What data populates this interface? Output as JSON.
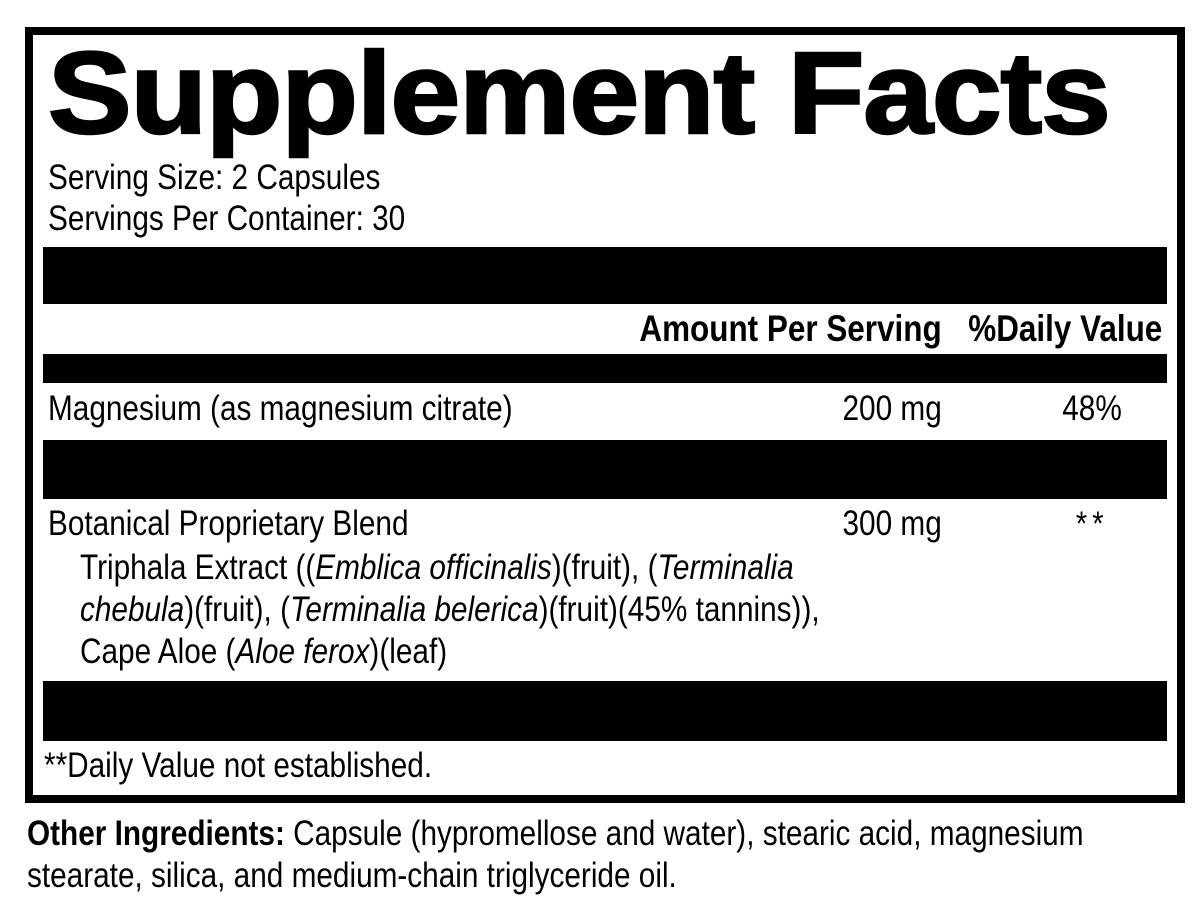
{
  "label": {
    "title": "Supplement Facts",
    "serving_size": "Serving Size: 2 Capsules",
    "servings_per_container": "Servings Per Container: 30",
    "columns": {
      "amount": "Amount Per Serving",
      "daily_value": "%Daily Value"
    },
    "rows": [
      {
        "name": "Magnesium (as magnesium citrate)",
        "amount": "200 mg",
        "dv": "48%"
      }
    ],
    "blend": {
      "name": "Botanical Proprietary Blend",
      "amount": "300 mg",
      "dv": "**",
      "lines": [
        [
          {
            "text": "Triphala Extract (("
          },
          {
            "text": "Emblica officinalis",
            "italic": true
          },
          {
            "text": ")(fruit), ("
          },
          {
            "text": "Terminalia",
            "italic": true
          }
        ],
        [
          {
            "text": "chebula",
            "italic": true
          },
          {
            "text": ")(fruit), ("
          },
          {
            "text": "Terminalia belerica",
            "italic": true
          },
          {
            "text": ")(fruit)(45% tannins)),"
          }
        ],
        [
          {
            "text": "Cape Aloe ("
          },
          {
            "text": "Aloe ferox",
            "italic": true
          },
          {
            "text": ")(leaf)"
          }
        ]
      ]
    },
    "footnote": "**Daily Value not established.",
    "other_ingredients": {
      "label": "Other Ingredients:",
      "text": " Capsule (hypromellose and water), stearic acid, magnesium stearate, silica, and medium-chain triglyceride oil."
    },
    "colors": {
      "ink": "#000000",
      "background": "#ffffff"
    }
  }
}
